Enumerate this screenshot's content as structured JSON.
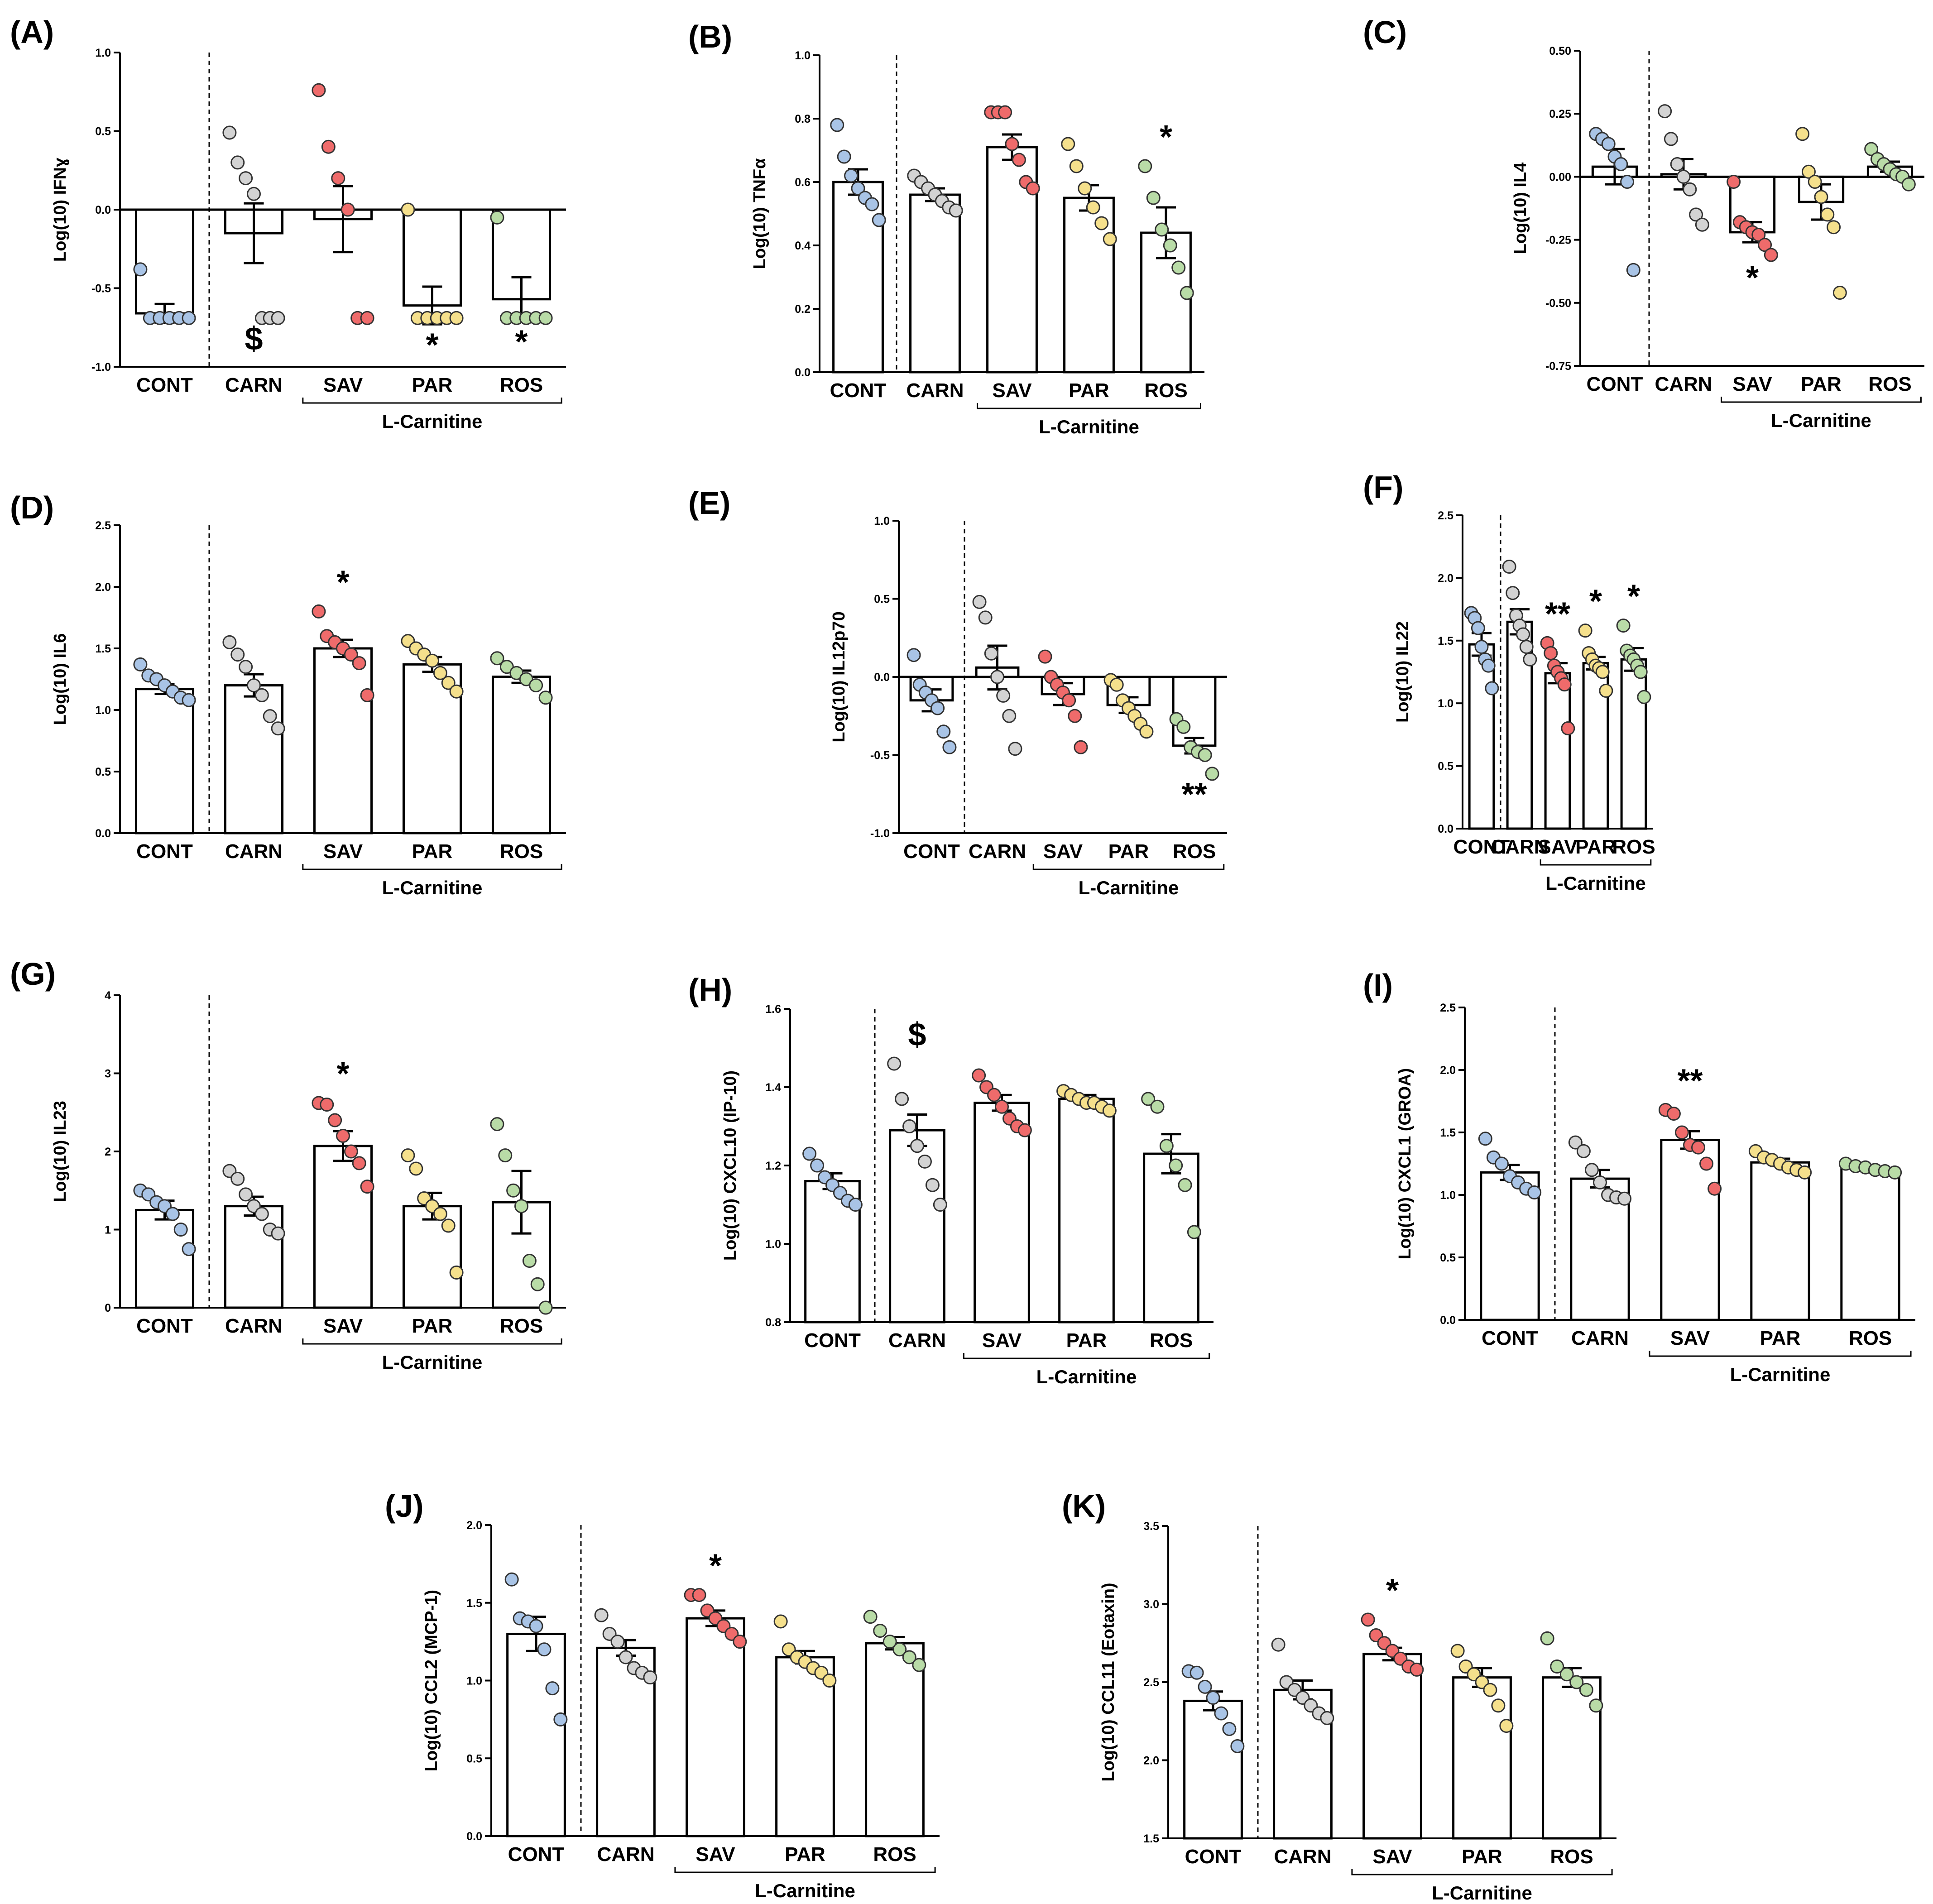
{
  "colors": {
    "cont": "#a9c4e6",
    "carn": "#d3d3d3",
    "sav": "#ef6b6b",
    "par": "#f5e08c",
    "ros": "#b9dca7",
    "bar_fill": "#ffffff",
    "stroke": "#000000"
  },
  "chart_data": [
    {
      "type": "bar",
      "panel": "(A)",
      "ylabel": "Log(10) IFNɣ",
      "categories": [
        "CONT",
        "CARN",
        "SAV",
        "PAR",
        "ROS"
      ],
      "group_label": "L-Carnitine",
      "ylim": [
        -1.0,
        1.0
      ],
      "yticks": [
        "1.0",
        "0.5",
        "0.0",
        "-0.5",
        "-1.0"
      ],
      "values": [
        -0.66,
        -0.15,
        -0.06,
        -0.61,
        -0.57
      ],
      "sem": [
        0.06,
        0.19,
        0.21,
        0.12,
        0.14
      ],
      "points": [
        [
          -0.38,
          -0.69,
          -0.69,
          -0.69,
          -0.69,
          -0.69
        ],
        [
          0.49,
          0.3,
          0.2,
          0.1,
          -0.69,
          -0.69,
          -0.69
        ],
        [
          0.76,
          0.4,
          0.2,
          0.0,
          -0.69,
          -0.69
        ],
        [
          0.0,
          -0.69,
          -0.69,
          -0.69,
          -0.69,
          -0.69
        ],
        [
          -0.05,
          -0.69,
          -0.69,
          -0.69,
          -0.69,
          -0.69
        ]
      ],
      "annotations": [
        "",
        "$",
        "",
        "*",
        "*"
      ]
    },
    {
      "type": "bar",
      "panel": "(B)",
      "ylabel": "Log(10) TNFα",
      "categories": [
        "CONT",
        "CARN",
        "SAV",
        "PAR",
        "ROS"
      ],
      "group_label": "L-Carnitine",
      "ylim": [
        0.0,
        1.0
      ],
      "yticks": [
        "1.0",
        "0.8",
        "0.6",
        "0.4",
        "0.2",
        "0.0"
      ],
      "values": [
        0.6,
        0.56,
        0.71,
        0.55,
        0.44
      ],
      "sem": [
        0.04,
        0.02,
        0.04,
        0.04,
        0.08
      ],
      "points": [
        [
          0.78,
          0.68,
          0.62,
          0.58,
          0.55,
          0.53,
          0.48
        ],
        [
          0.62,
          0.6,
          0.58,
          0.56,
          0.54,
          0.52,
          0.51
        ],
        [
          0.82,
          0.82,
          0.82,
          0.72,
          0.67,
          0.6,
          0.58
        ],
        [
          0.72,
          0.65,
          0.58,
          0.52,
          0.47,
          0.42
        ],
        [
          0.65,
          0.55,
          0.45,
          0.4,
          0.33,
          0.25
        ]
      ],
      "annotations": [
        "",
        "",
        "",
        "",
        "*"
      ]
    },
    {
      "type": "bar",
      "panel": "(C)",
      "ylabel": "Log(10) IL4",
      "categories": [
        "CONT",
        "CARN",
        "SAV",
        "PAR",
        "ROS"
      ],
      "group_label": "L-Carnitine",
      "ylim": [
        -0.75,
        0.5
      ],
      "yticks": [
        "0.50",
        "0.25",
        "0.00",
        "-0.25",
        "-0.50",
        "-0.75"
      ],
      "values": [
        0.04,
        0.01,
        -0.22,
        -0.1,
        0.04
      ],
      "sem": [
        0.07,
        0.06,
        0.04,
        0.07,
        0.02
      ],
      "points": [
        [
          0.17,
          0.15,
          0.13,
          0.08,
          0.05,
          -0.02,
          -0.37
        ],
        [
          0.26,
          0.15,
          0.05,
          0.0,
          -0.05,
          -0.15,
          -0.19
        ],
        [
          -0.02,
          -0.18,
          -0.2,
          -0.22,
          -0.23,
          -0.27,
          -0.31
        ],
        [
          0.17,
          0.02,
          -0.02,
          -0.08,
          -0.15,
          -0.2,
          -0.46
        ],
        [
          0.11,
          0.07,
          0.05,
          0.03,
          0.01,
          0.0,
          -0.03
        ]
      ],
      "annotations": [
        "",
        "",
        "*",
        "",
        ""
      ]
    },
    {
      "type": "bar",
      "panel": "(D)",
      "ylabel": "Log(10) IL6",
      "categories": [
        "CONT",
        "CARN",
        "SAV",
        "PAR",
        "ROS"
      ],
      "group_label": "L-Carnitine",
      "ylim": [
        0.0,
        2.5
      ],
      "yticks": [
        "2.5",
        "2.0",
        "1.5",
        "1.0",
        "0.5",
        "0.0"
      ],
      "values": [
        1.17,
        1.2,
        1.5,
        1.37,
        1.27
      ],
      "sem": [
        0.04,
        0.09,
        0.07,
        0.06,
        0.05
      ],
      "points": [
        [
          1.37,
          1.28,
          1.25,
          1.2,
          1.15,
          1.1,
          1.08
        ],
        [
          1.55,
          1.45,
          1.35,
          1.2,
          1.12,
          0.95,
          0.85
        ],
        [
          1.8,
          1.6,
          1.55,
          1.5,
          1.45,
          1.38,
          1.12
        ],
        [
          1.56,
          1.5,
          1.45,
          1.4,
          1.3,
          1.22,
          1.15
        ],
        [
          1.42,
          1.35,
          1.3,
          1.25,
          1.2,
          1.1
        ]
      ],
      "annotations": [
        "",
        "",
        "*",
        "",
        ""
      ]
    },
    {
      "type": "bar",
      "panel": "(E)",
      "ylabel": "Log(10) IL12p70",
      "categories": [
        "CONT",
        "CARN",
        "SAV",
        "PAR",
        "ROS"
      ],
      "group_label": "L-Carnitine",
      "ylim": [
        -1.0,
        1.0
      ],
      "yticks": [
        "1.0",
        "0.5",
        "0.0",
        "-0.5",
        "-1.0"
      ],
      "values": [
        -0.15,
        0.06,
        -0.11,
        -0.18,
        -0.44
      ],
      "sem": [
        0.07,
        0.14,
        0.07,
        0.05,
        0.05
      ],
      "points": [
        [
          0.14,
          -0.05,
          -0.1,
          -0.15,
          -0.2,
          -0.35,
          -0.45
        ],
        [
          0.48,
          0.38,
          0.15,
          0.0,
          -0.12,
          -0.25,
          -0.46
        ],
        [
          0.13,
          0.0,
          -0.05,
          -0.1,
          -0.15,
          -0.25,
          -0.45
        ],
        [
          -0.02,
          -0.05,
          -0.15,
          -0.2,
          -0.25,
          -0.3,
          -0.35
        ],
        [
          -0.27,
          -0.32,
          -0.45,
          -0.48,
          -0.5,
          -0.62
        ]
      ],
      "annotations": [
        "",
        "",
        "",
        "",
        "**"
      ]
    },
    {
      "type": "bar",
      "panel": "(F)",
      "ylabel": "Log(10) IL22",
      "categories": [
        "CONT",
        "CARN",
        "SAV",
        "PAR",
        "ROS"
      ],
      "group_label": "L-Carnitine",
      "ylim": [
        0.0,
        2.5
      ],
      "yticks": [
        "2.5",
        "2.0",
        "1.5",
        "1.0",
        "0.5",
        "0.0"
      ],
      "values": [
        1.47,
        1.65,
        1.24,
        1.32,
        1.35
      ],
      "sem": [
        0.09,
        0.1,
        0.08,
        0.05,
        0.09
      ],
      "points": [
        [
          1.72,
          1.68,
          1.6,
          1.45,
          1.35,
          1.3,
          1.12
        ],
        [
          2.09,
          1.88,
          1.7,
          1.62,
          1.55,
          1.45,
          1.35
        ],
        [
          1.48,
          1.4,
          1.3,
          1.25,
          1.2,
          1.15,
          0.8
        ],
        [
          1.58,
          1.4,
          1.35,
          1.3,
          1.28,
          1.25,
          1.1
        ],
        [
          1.62,
          1.42,
          1.38,
          1.35,
          1.3,
          1.25,
          1.05
        ]
      ],
      "annotations": [
        "",
        "",
        "**",
        "*",
        "*"
      ]
    },
    {
      "type": "bar",
      "panel": "(G)",
      "ylabel": "Log(10) IL23",
      "categories": [
        "CONT",
        "CARN",
        "SAV",
        "PAR",
        "ROS"
      ],
      "group_label": "L-Carnitine",
      "ylim": [
        0,
        4
      ],
      "yticks": [
        "4",
        "3",
        "2",
        "1",
        "0"
      ],
      "values": [
        1.25,
        1.3,
        2.07,
        1.3,
        1.35
      ],
      "sem": [
        0.12,
        0.12,
        0.19,
        0.17,
        0.4
      ],
      "points": [
        [
          1.5,
          1.45,
          1.35,
          1.3,
          1.2,
          1.0,
          0.75
        ],
        [
          1.75,
          1.65,
          1.45,
          1.3,
          1.2,
          1.0,
          0.95
        ],
        [
          2.62,
          2.6,
          2.4,
          2.2,
          2.0,
          1.85,
          1.55
        ],
        [
          1.95,
          1.78,
          1.4,
          1.3,
          1.2,
          1.05,
          0.45
        ],
        [
          2.35,
          1.95,
          1.5,
          1.3,
          0.6,
          0.3,
          0.0
        ]
      ],
      "annotations": [
        "",
        "",
        "*",
        "",
        ""
      ]
    },
    {
      "type": "bar",
      "panel": "(H)",
      "ylabel": "Log(10) CXCL10 (IP-10)",
      "categories": [
        "CONT",
        "CARN",
        "SAV",
        "PAR",
        "ROS"
      ],
      "group_label": "L-Carnitine",
      "ylim": [
        0.8,
        1.6
      ],
      "yticks": [
        "1.6",
        "1.4",
        "1.2",
        "1.0",
        "0.8"
      ],
      "values": [
        1.16,
        1.29,
        1.36,
        1.37,
        1.23
      ],
      "sem": [
        0.02,
        0.04,
        0.02,
        0.01,
        0.05
      ],
      "points": [
        [
          1.23,
          1.2,
          1.17,
          1.15,
          1.13,
          1.11,
          1.1
        ],
        [
          1.46,
          1.37,
          1.3,
          1.25,
          1.21,
          1.15,
          1.1
        ],
        [
          1.43,
          1.4,
          1.38,
          1.35,
          1.32,
          1.3,
          1.29
        ],
        [
          1.39,
          1.38,
          1.37,
          1.36,
          1.36,
          1.35,
          1.34
        ],
        [
          1.37,
          1.35,
          1.25,
          1.2,
          1.15,
          1.03
        ]
      ],
      "annotations": [
        "",
        "$",
        "",
        "",
        ""
      ]
    },
    {
      "type": "bar",
      "panel": "(I)",
      "ylabel": "Log(10) CXCL1 (GROA)",
      "categories": [
        "CONT",
        "CARN",
        "SAV",
        "PAR",
        "ROS"
      ],
      "group_label": "L-Carnitine",
      "ylim": [
        0.0,
        2.5
      ],
      "yticks": [
        "2.5",
        "2.0",
        "1.5",
        "1.0",
        "0.5",
        "0.0"
      ],
      "values": [
        1.18,
        1.13,
        1.44,
        1.26,
        1.21
      ],
      "sem": [
        0.06,
        0.07,
        0.07,
        0.03,
        0.02
      ],
      "points": [
        [
          1.45,
          1.3,
          1.25,
          1.15,
          1.1,
          1.05,
          1.02
        ],
        [
          1.42,
          1.35,
          1.2,
          1.1,
          1.0,
          0.98,
          0.97
        ],
        [
          1.68,
          1.65,
          1.5,
          1.4,
          1.38,
          1.25,
          1.05
        ],
        [
          1.35,
          1.3,
          1.28,
          1.25,
          1.22,
          1.2,
          1.18
        ],
        [
          1.25,
          1.23,
          1.22,
          1.2,
          1.19,
          1.18
        ]
      ],
      "annotations": [
        "",
        "",
        "**",
        "",
        ""
      ]
    },
    {
      "type": "bar",
      "panel": "(J)",
      "ylabel": "Log(10) CCL2 (MCP-1)",
      "categories": [
        "CONT",
        "CARN",
        "SAV",
        "PAR",
        "ROS"
      ],
      "group_label": "L-Carnitine",
      "ylim": [
        0.0,
        2.0
      ],
      "yticks": [
        "2.0",
        "1.5",
        "1.0",
        "0.5",
        "0.0"
      ],
      "values": [
        1.3,
        1.21,
        1.4,
        1.15,
        1.24
      ],
      "sem": [
        0.11,
        0.05,
        0.05,
        0.04,
        0.04
      ],
      "points": [
        [
          1.65,
          1.4,
          1.38,
          1.35,
          1.2,
          0.95,
          0.75
        ],
        [
          1.42,
          1.3,
          1.25,
          1.15,
          1.08,
          1.05,
          1.02
        ],
        [
          1.55,
          1.55,
          1.45,
          1.4,
          1.35,
          1.3,
          1.25
        ],
        [
          1.38,
          1.2,
          1.15,
          1.12,
          1.08,
          1.05,
          1.0
        ],
        [
          1.41,
          1.32,
          1.25,
          1.2,
          1.15,
          1.1
        ]
      ],
      "annotations": [
        "",
        "",
        "*",
        "",
        ""
      ]
    },
    {
      "type": "bar",
      "panel": "(K)",
      "ylabel": "Log(10) CCL11 (Eotaxin)",
      "categories": [
        "CONT",
        "CARN",
        "SAV",
        "PAR",
        "ROS"
      ],
      "group_label": "L-Carnitine",
      "ylim": [
        1.5,
        3.5
      ],
      "yticks": [
        "3.5",
        "3.0",
        "2.5",
        "2.0",
        "1.5"
      ],
      "values": [
        2.38,
        2.45,
        2.68,
        2.53,
        2.53
      ],
      "sem": [
        0.06,
        0.06,
        0.04,
        0.06,
        0.06
      ],
      "points": [
        [
          2.57,
          2.56,
          2.47,
          2.4,
          2.3,
          2.2,
          2.09
        ],
        [
          2.74,
          2.5,
          2.45,
          2.4,
          2.35,
          2.3,
          2.27
        ],
        [
          2.9,
          2.8,
          2.75,
          2.7,
          2.65,
          2.6,
          2.58
        ],
        [
          2.7,
          2.6,
          2.55,
          2.5,
          2.45,
          2.35,
          2.22
        ],
        [
          2.78,
          2.6,
          2.55,
          2.5,
          2.45,
          2.35
        ]
      ],
      "annotations": [
        "",
        "",
        "*",
        "",
        ""
      ]
    }
  ]
}
